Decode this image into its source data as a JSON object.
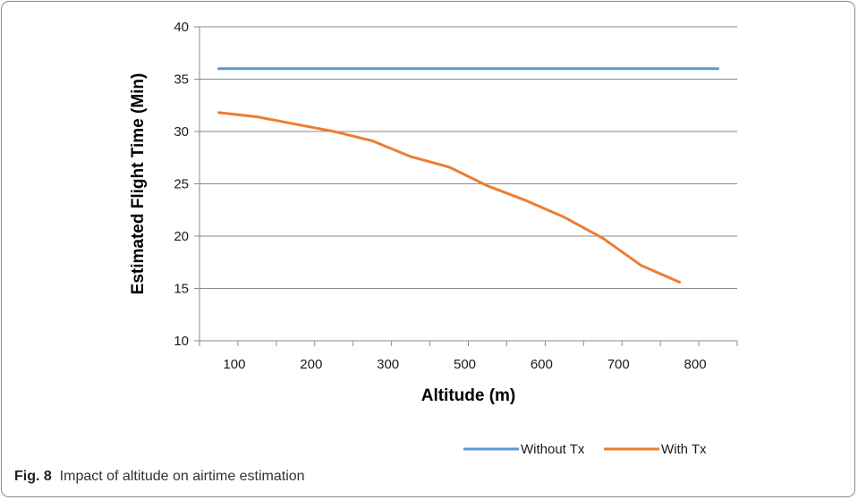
{
  "caption": {
    "label": "Fig. 8",
    "text": "Impact of altitude on airtime estimation"
  },
  "chart_data": {
    "type": "line",
    "xlabel": "Altitude (m)",
    "ylabel": "Estimated Flight Time (Min)",
    "ylim": [
      10,
      40
    ],
    "yticks": [
      10,
      15,
      20,
      25,
      30,
      35,
      40
    ],
    "xtick_labels": [
      "100",
      "200",
      "300",
      "500",
      "600",
      "700",
      "800"
    ],
    "grid": "horizontal",
    "legend_position": "bottom-right",
    "series": [
      {
        "name": "Without Tx",
        "color": "#5b9bd5",
        "values": [
          36,
          36,
          36,
          36,
          36,
          36,
          36,
          36,
          36,
          36,
          36,
          36,
          36,
          36
        ]
      },
      {
        "name": "With Tx",
        "color": "#ed7d31",
        "values": [
          31.8,
          31.4,
          30.7,
          30.0,
          29.1,
          27.6,
          26.6,
          24.8,
          23.4,
          21.8,
          19.8,
          17.2,
          15.6
        ]
      }
    ]
  }
}
